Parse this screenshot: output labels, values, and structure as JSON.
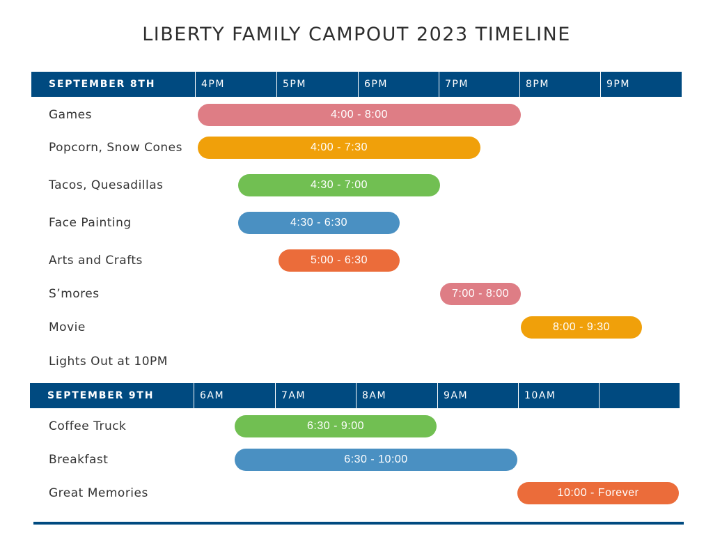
{
  "title": "LIBERTY FAMILY CAMPOUT 2023 TIMELINE",
  "colors": {
    "header": "#004a80",
    "pink": "#de7d85",
    "orange": "#f0a00a",
    "green": "#71bf52",
    "blue": "#4a90c2",
    "red_orange": "#eb6c3a"
  },
  "chart_data": [
    {
      "type": "gantt",
      "date": "SEPTEMBER 8TH",
      "time_ticks": [
        "4PM",
        "5PM",
        "6PM",
        "7PM",
        "8PM",
        "9PM"
      ],
      "rows": [
        {
          "label": "Games",
          "start": 16.0,
          "end": 20.0,
          "text": "4:00 - 8:00",
          "color": "#de7d85"
        },
        {
          "label": "Popcorn, Snow Cones",
          "start": 16.0,
          "end": 19.5,
          "text": "4:00 - 7:30",
          "color": "#f0a00a"
        },
        {
          "label": "Tacos, Quesadillas",
          "start": 16.5,
          "end": 19.0,
          "text": "4:30 - 7:00",
          "color": "#71bf52"
        },
        {
          "label": "Face Painting",
          "start": 16.5,
          "end": 18.5,
          "text": "4:30 - 6:30",
          "color": "#4a90c2"
        },
        {
          "label": "Arts and Crafts",
          "start": 17.0,
          "end": 18.5,
          "text": "5:00 - 6:30",
          "color": "#eb6c3a"
        },
        {
          "label": "S’mores",
          "start": 19.0,
          "end": 20.0,
          "text": "7:00 - 8:00",
          "color": "#de7d85"
        },
        {
          "label": "Movie",
          "start": 20.0,
          "end": 21.5,
          "text": "8:00 - 9:30",
          "color": "#f0a00a"
        },
        {
          "label": "Lights Out at 10PM"
        }
      ]
    },
    {
      "type": "gantt",
      "date": "SEPTEMBER 9TH",
      "time_ticks": [
        "6AM",
        "7AM",
        "8AM",
        "9AM",
        "10AM",
        ""
      ],
      "rows": [
        {
          "label": "Coffee Truck",
          "start": 6.5,
          "end": 9.0,
          "text": "6:30 - 9:00",
          "color": "#71bf52"
        },
        {
          "label": "Breakfast",
          "start": 6.5,
          "end": 10.0,
          "text": "6:30 - 10:00",
          "color": "#4a90c2"
        },
        {
          "label": "Great Memories",
          "start": 10.0,
          "end": 12.0,
          "text": "10:00 - Forever",
          "color": "#eb6c3a"
        }
      ]
    }
  ]
}
